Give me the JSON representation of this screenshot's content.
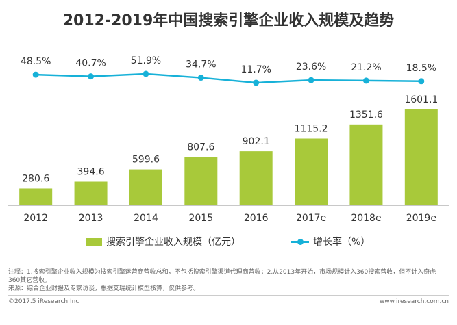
{
  "title": "2012-2019年中国搜索引擎企业收入规模及趋势",
  "legend": {
    "bar_label": "搜索引擎企业收入规模（亿元）",
    "line_label": "增长率（%）"
  },
  "notes": {
    "line1": "注释：1.搜索引擎企业收入规模为搜索引擎运营商营收总和，不包括搜索引擎渠道代理商营收；2.从2013年开始，市场规模计入360搜索营收，但不计入奇虎360其它营收。",
    "line2": "来源：综合企业财报及专家访谈，根据艾瑞统计模型核算，仅供参考。"
  },
  "footer": {
    "left": "©2017.5 iResearch Inc",
    "right": "www.iresearch.com.cn"
  },
  "colors": {
    "bar": "#a8c93a",
    "line": "#17b1d8"
  },
  "chart_data": {
    "type": "bar",
    "categories": [
      "2012",
      "2013",
      "2014",
      "2015",
      "2016",
      "2017e",
      "2018e",
      "2019e"
    ],
    "series": [
      {
        "name": "搜索引擎企业收入规模（亿元）",
        "type": "bar",
        "values": [
          280.6,
          394.6,
          599.6,
          807.6,
          902.1,
          1115.2,
          1351.6,
          1601.1
        ],
        "labels": [
          "280.6",
          "394.6",
          "599.6",
          "807.6",
          "902.1",
          "1115.2",
          "1351.6",
          "1601.1"
        ]
      },
      {
        "name": "增长率（%）",
        "type": "line",
        "values": [
          48.5,
          40.7,
          51.9,
          34.7,
          11.7,
          23.6,
          21.2,
          18.5
        ],
        "labels": [
          "48.5%",
          "40.7%",
          "51.9%",
          "34.7%",
          "11.7%",
          "23.6%",
          "21.2%",
          "18.5%"
        ]
      }
    ],
    "grid": false,
    "legend_position": "bottom"
  }
}
